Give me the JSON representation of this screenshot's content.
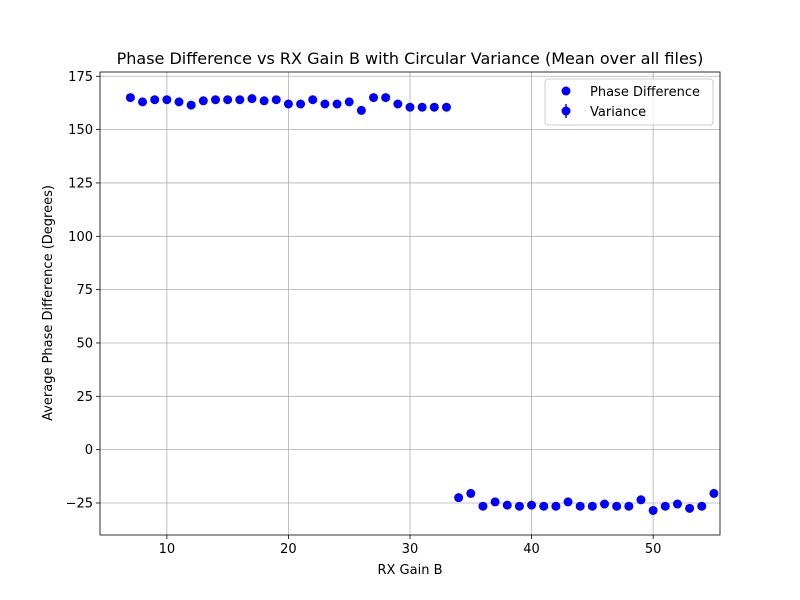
{
  "chart_data": {
    "type": "scatter",
    "title": "Phase Difference vs RX Gain B with Circular Variance (Mean over all files)",
    "xlabel": "RX Gain B",
    "ylabel": "Average Phase Difference (Degrees)",
    "xlim": [
      4.5,
      55.5
    ],
    "ylim": [
      -40,
      177
    ],
    "xticks": [
      "10",
      "20",
      "30",
      "40",
      "50"
    ],
    "yticks": [
      "−25",
      "0",
      "25",
      "50",
      "75",
      "100",
      "125",
      "150",
      "175"
    ],
    "grid": true,
    "legend_position": "top-right",
    "legend": [
      "Phase Difference",
      "Variance"
    ],
    "marker_color": "#0000ff",
    "series": [
      {
        "name": "Phase Difference",
        "x": [
          7,
          8,
          9,
          10,
          11,
          12,
          13,
          14,
          15,
          16,
          17,
          18,
          19,
          20,
          21,
          22,
          23,
          24,
          25,
          26,
          27,
          28,
          29,
          30,
          31,
          32,
          33,
          34,
          35,
          36,
          37,
          38,
          39,
          40,
          41,
          42,
          43,
          44,
          45,
          46,
          47,
          48,
          49,
          50,
          51,
          52,
          53,
          54,
          55
        ],
        "y": [
          165,
          163,
          164,
          164,
          163,
          161.5,
          163.5,
          164,
          164,
          164,
          164.5,
          163.5,
          164,
          162,
          162,
          164,
          162,
          162,
          163,
          159,
          165,
          165,
          162,
          160.5,
          160.5,
          160.5,
          160.5,
          -22.5,
          -20.5,
          -26.5,
          -24.5,
          -26,
          -26.5,
          -26,
          -26.5,
          -26.5,
          -24.5,
          -26.5,
          -26.5,
          -25.5,
          -26.5,
          -26.5,
          -23.5,
          -28.5,
          -26.5,
          -25.5,
          -27.5,
          -26.5,
          -20.5
        ]
      }
    ],
    "variance": {
      "name": "Variance",
      "err": [
        1.5,
        1,
        1,
        1,
        1,
        1,
        1.5,
        1.5,
        1,
        1.5,
        2,
        1.5,
        1.5,
        1,
        1,
        2,
        1,
        1,
        1,
        1,
        1,
        1,
        1,
        1,
        1,
        1,
        1,
        1.2,
        2,
        1.2,
        1.5,
        1,
        1,
        1,
        1,
        1,
        1.5,
        1,
        1,
        1,
        1,
        1,
        1.5,
        1,
        1,
        1,
        1,
        1,
        1.2
      ]
    }
  }
}
